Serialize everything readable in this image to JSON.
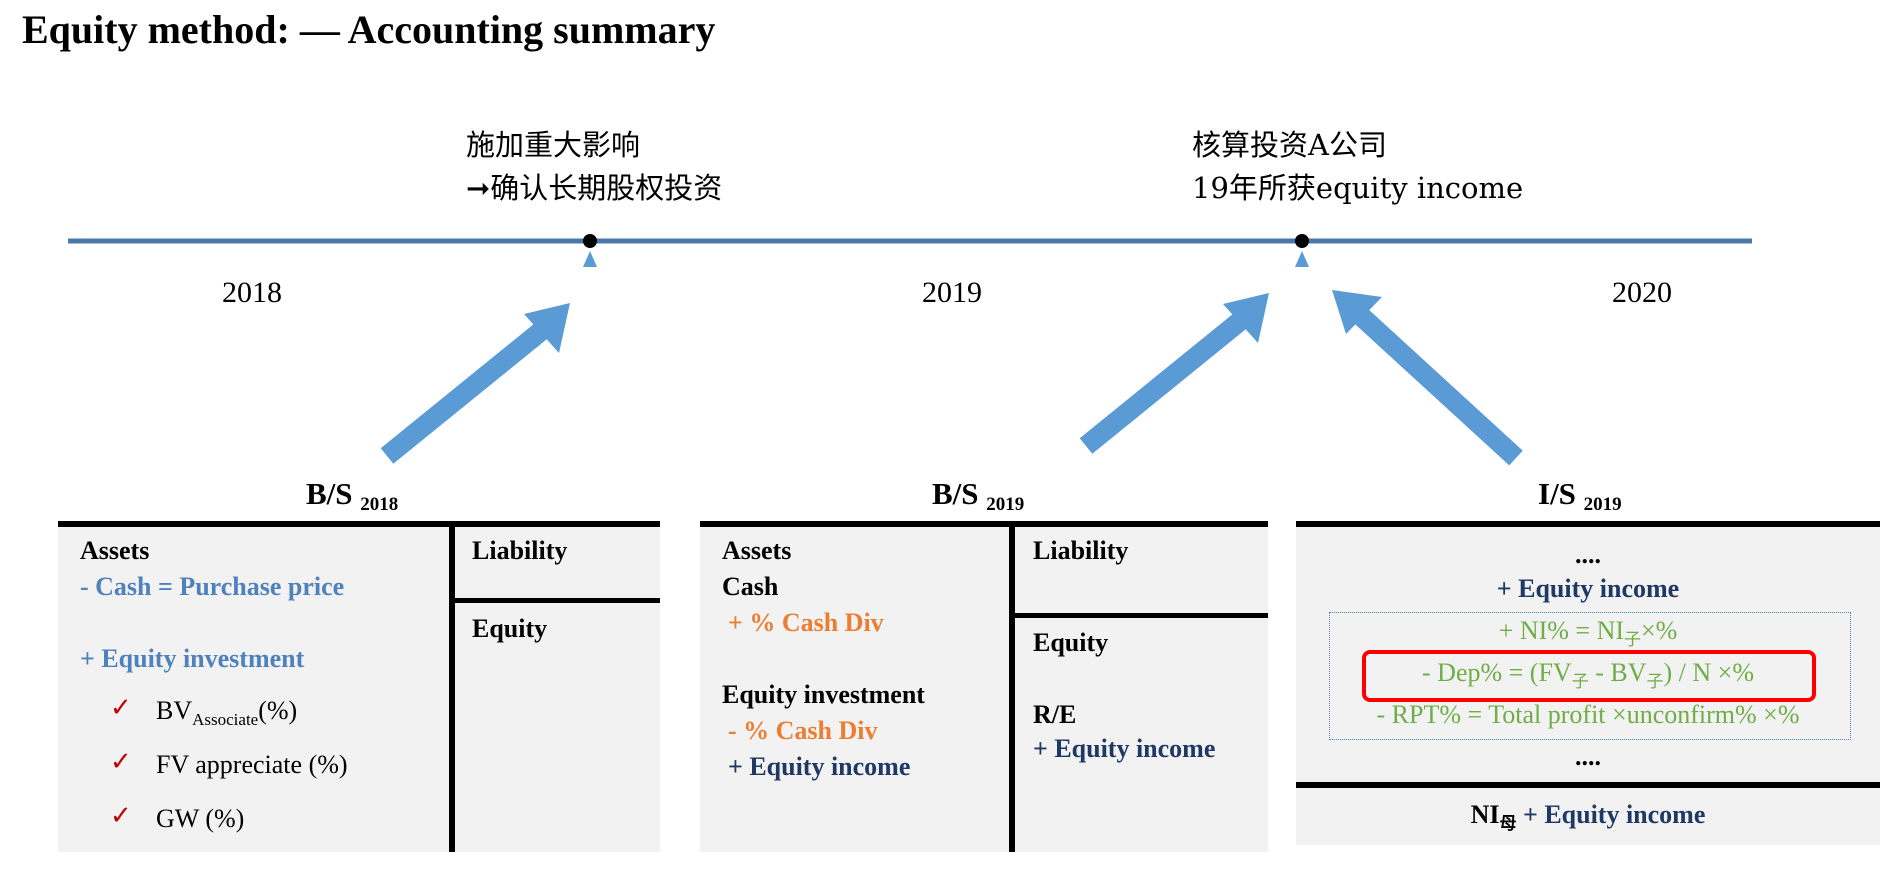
{
  "title": "Equity method: — Accounting summary",
  "timeline": {
    "event1": {
      "line1": "施加重大影响",
      "line2": "➞确认长期股权投资"
    },
    "event2": {
      "line1": "核算投资A公司",
      "line2": "19年所获equity income"
    },
    "years": [
      "2018",
      "2019",
      "2020"
    ]
  },
  "bs2018": {
    "label": "B/S",
    "label_sub": "2018",
    "assets": "Assets",
    "cash": "-  Cash = Purchase price",
    "equity_investment": "+ Equity investment",
    "check": "✓",
    "bv": "BV",
    "bv_sub": "Associate",
    "bv_pct": "(%)",
    "fv": "FV appreciate (%)",
    "gw": "GW (%)",
    "liability": "Liability",
    "equity": "Equity"
  },
  "bs2019": {
    "label": "B/S",
    "label_sub": "2019",
    "assets": "Assets",
    "cash": "Cash",
    "cash_div_plus": "+ % Cash Div",
    "equity_investment": "Equity investment",
    "cash_div_minus": "-  % Cash Div",
    "equity_income": "+ Equity income",
    "liability": "Liability",
    "equity": "Equity",
    "re": "R/E",
    "re_equity_income": "+ Equity income"
  },
  "is2019": {
    "label": "I/S",
    "label_sub": "2019",
    "dots_top": "....",
    "equity_income": "+ Equity income",
    "ni_pre": "+ NI% = NI",
    "ni_sub": "子",
    "ni_post": "×%",
    "dep_pre": "- Dep% = (FV",
    "dep_sub1": "子",
    "dep_mid": " - BV",
    "dep_sub2": "子",
    "dep_post": ") / N ×%",
    "rpt": "- RPT% = Total profit ×unconfirm% ×%",
    "dots_bottom": "....",
    "ni_parent": "NI",
    "ni_parent_sub": "母",
    "ni_parent_income": " + Equity income"
  },
  "colors": {
    "timeline": "#4a78a8",
    "arrow": "#5b9bd5",
    "blue_text": "#4f81bd",
    "orange_text": "#ed7d31",
    "navy_text": "#1f3864",
    "green_text": "#70ad47",
    "highlight_box": "#ff0000",
    "check": "#c00000"
  }
}
